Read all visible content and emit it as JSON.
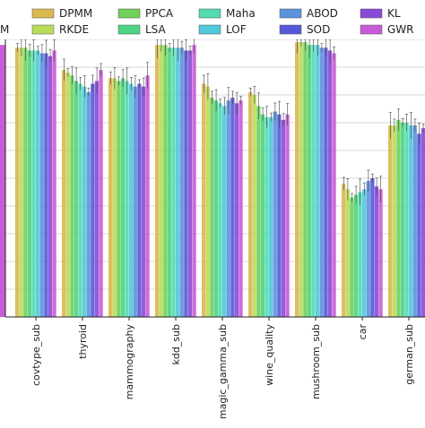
{
  "chart_data": {
    "type": "bar",
    "title": "",
    "xlabel": "",
    "ylabel": "",
    "ylim": [
      0,
      1
    ],
    "grid": true,
    "legend_placement": "top",
    "categories": [
      "covtype_sub",
      "thyroid",
      "mammography",
      "kdd_sub",
      "magic_gamma_sub",
      "wine_quality",
      "mushroom_sub",
      "car",
      "german_sub"
    ],
    "series": [
      {
        "name": "DPMM",
        "color": "#d9b84f",
        "values": [
          0.97,
          0.89,
          0.86,
          0.98,
          0.84,
          0.81,
          0.99,
          0.48,
          0.69
        ]
      },
      {
        "name": "RKDE",
        "color": "#b9dc5a",
        "values": [
          0.97,
          0.88,
          0.86,
          0.98,
          0.83,
          0.8,
          0.99,
          0.46,
          0.69
        ]
      },
      {
        "name": "PPCA",
        "color": "#6fd05a",
        "values": [
          0.97,
          0.87,
          0.85,
          0.98,
          0.79,
          0.76,
          0.99,
          0.43,
          0.71
        ]
      },
      {
        "name": "LSA",
        "color": "#4ed482",
        "values": [
          0.96,
          0.85,
          0.86,
          0.97,
          0.78,
          0.73,
          0.98,
          0.44,
          0.7
        ]
      },
      {
        "name": "Maha",
        "color": "#52dab0",
        "values": [
          0.96,
          0.84,
          0.85,
          0.97,
          0.77,
          0.72,
          0.98,
          0.45,
          0.7
        ]
      },
      {
        "name": "LOF",
        "color": "#52c8dc",
        "values": [
          0.96,
          0.83,
          0.84,
          0.97,
          0.76,
          0.72,
          0.98,
          0.46,
          0.69
        ]
      },
      {
        "name": "ABOD",
        "color": "#5b92dc",
        "values": [
          0.95,
          0.81,
          0.83,
          0.97,
          0.78,
          0.74,
          0.97,
          0.49,
          0.69
        ]
      },
      {
        "name": "SOD",
        "color": "#5658d8",
        "values": [
          0.95,
          0.84,
          0.84,
          0.96,
          0.79,
          0.73,
          0.97,
          0.5,
          0.66
        ]
      },
      {
        "name": "KL",
        "color": "#8a4ad8",
        "values": [
          0.94,
          0.85,
          0.83,
          0.96,
          0.77,
          0.71,
          0.96,
          0.47,
          0.68
        ]
      },
      {
        "name": "GWR",
        "color": "#c85cd6",
        "values": [
          0.96,
          0.89,
          0.87,
          0.98,
          0.78,
          0.73,
          0.95,
          0.46,
          0.68
        ]
      }
    ]
  },
  "partial_legend_label": "M"
}
